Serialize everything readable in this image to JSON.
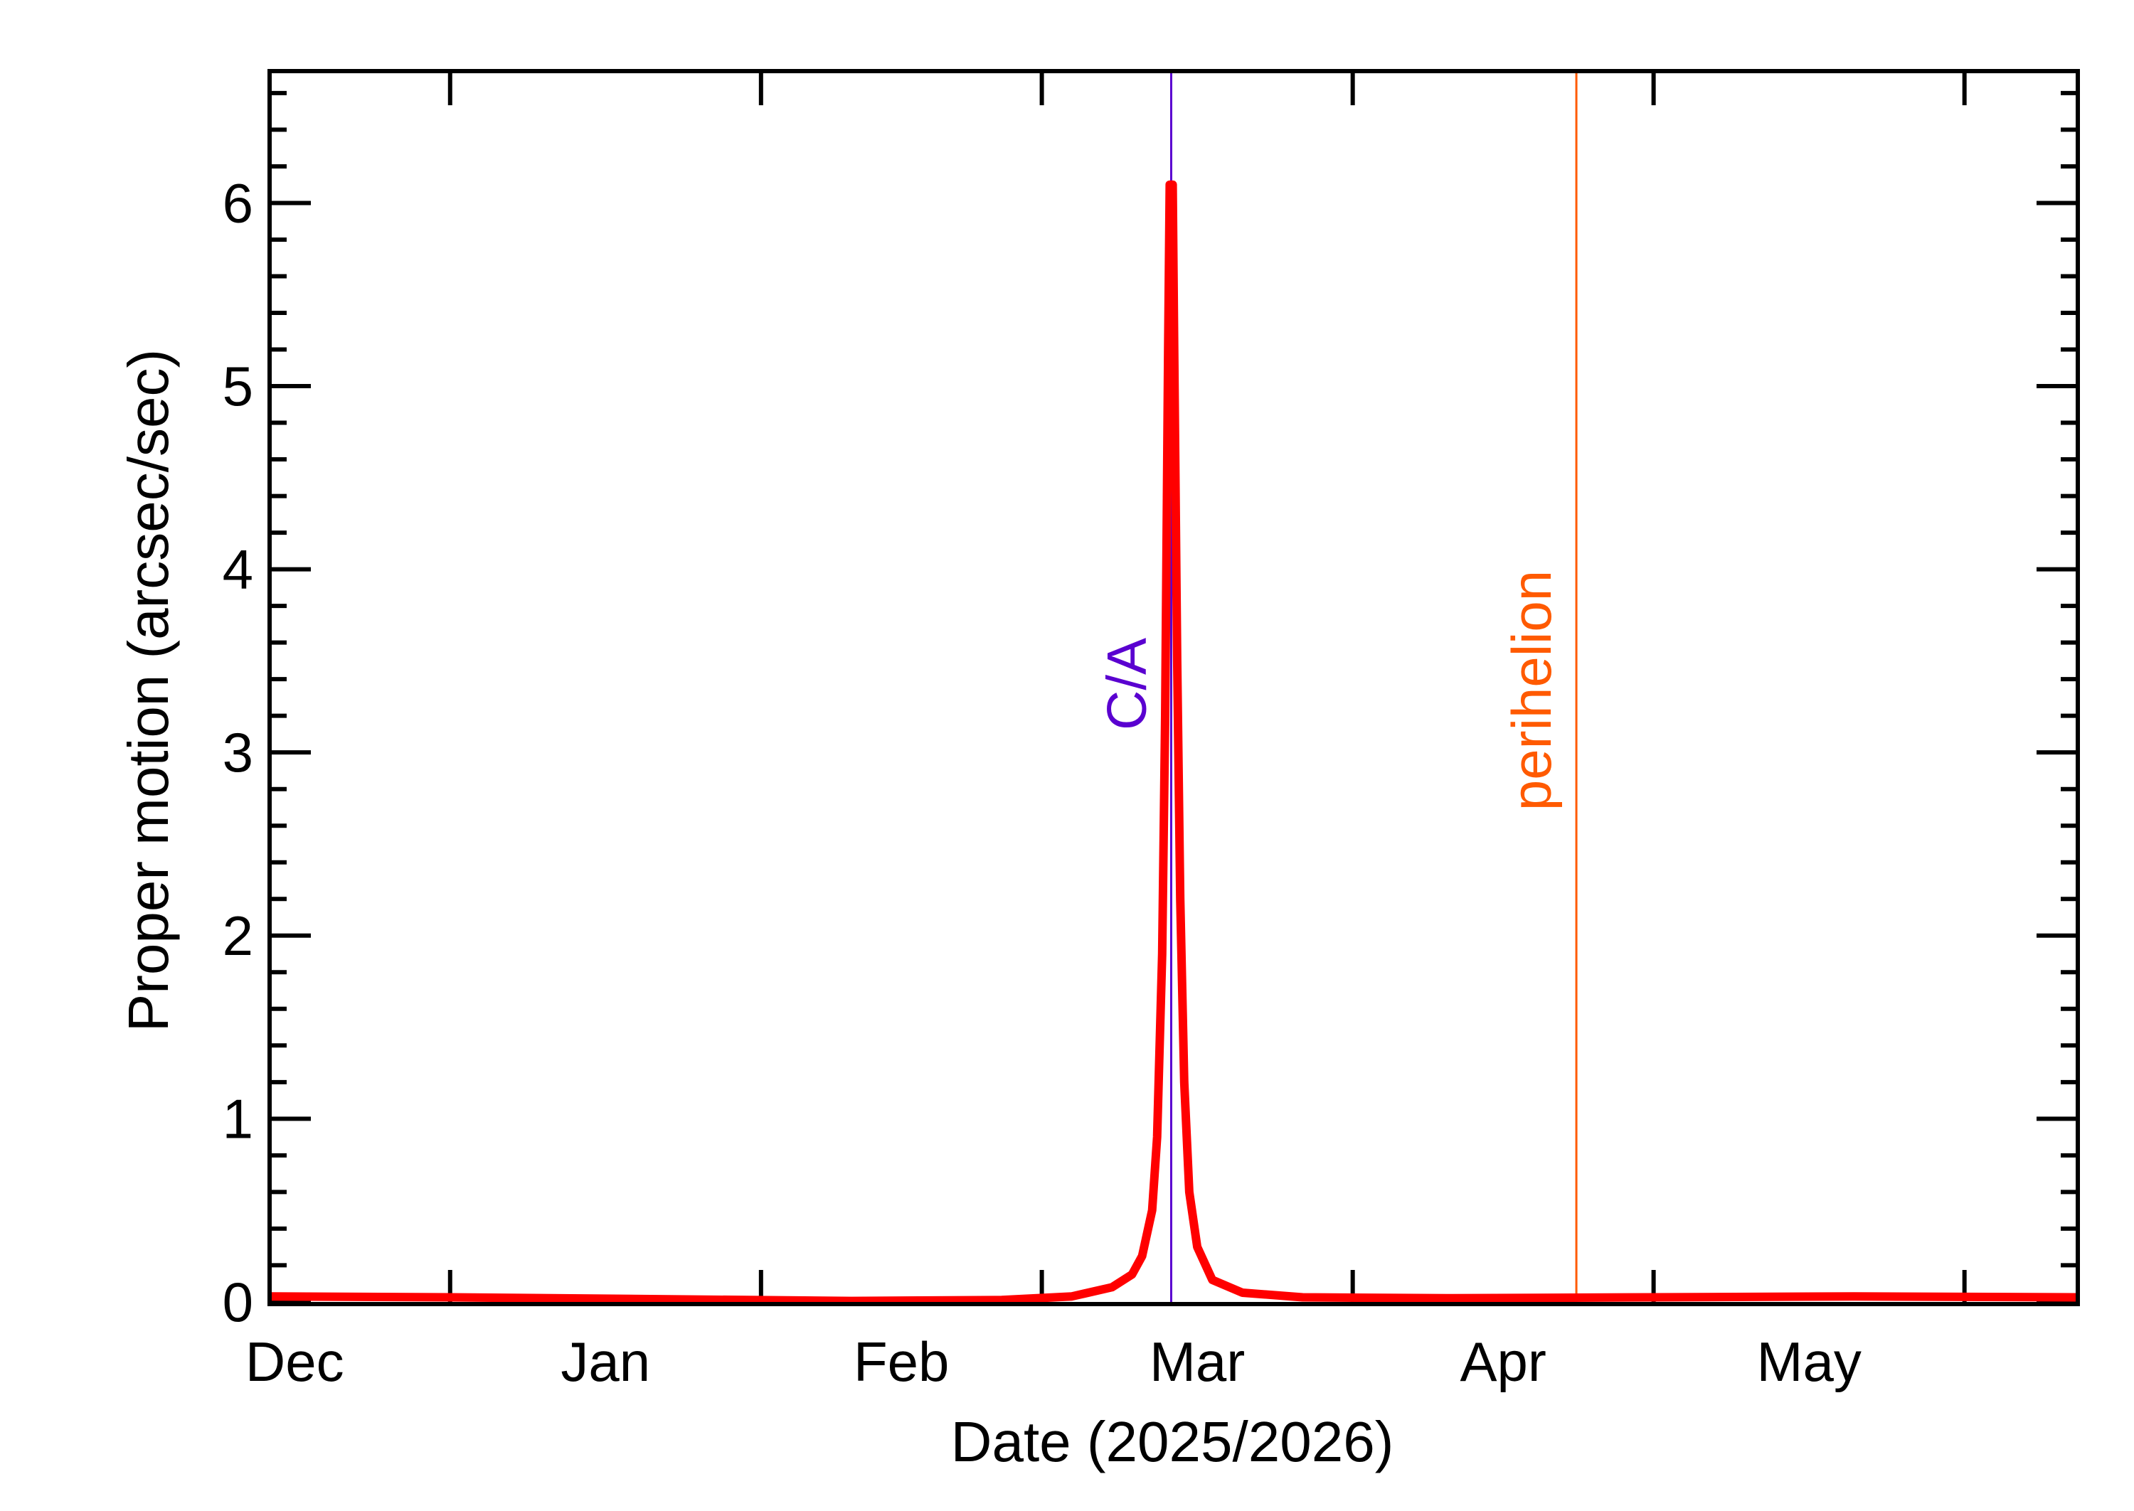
{
  "chart_data": {
    "type": "line",
    "title": "",
    "xlabel": "Date (2025/2026)",
    "ylabel": "Proper motion (arcsec/sec)",
    "x_units": "days since 2026-01-01",
    "xlim": [
      -18,
      162.3
    ],
    "ylim": [
      -0.012,
      6.72
    ],
    "grid": false,
    "x_ticks": [
      {
        "label": "Dec",
        "tick_day": null,
        "label_day": -15.5
      },
      {
        "label": "Jan",
        "tick_day": 0,
        "label_day": 15.5
      },
      {
        "label": "Feb",
        "tick_day": 31,
        "label_day": 45
      },
      {
        "label": "Mar",
        "tick_day": 59,
        "label_day": 74.5
      },
      {
        "label": "Apr",
        "tick_day": 90,
        "label_day": 105
      },
      {
        "label": "May",
        "tick_day": 120,
        "label_day": 135.5
      },
      {
        "label": "",
        "tick_day": 151,
        "label_day": null
      }
    ],
    "y_ticks": [
      {
        "value": 0,
        "label": "0"
      },
      {
        "value": 1,
        "label": "1"
      },
      {
        "value": 2,
        "label": "2"
      },
      {
        "value": 3,
        "label": "3"
      },
      {
        "value": 4,
        "label": "4"
      },
      {
        "value": 5,
        "label": "5"
      },
      {
        "value": 6,
        "label": "6"
      }
    ],
    "series": [
      {
        "name": "Proper motion",
        "color": "#ff0000",
        "points": [
          [
            -18,
            0.03
          ],
          [
            0,
            0.025
          ],
          [
            20,
            0.015
          ],
          [
            40,
            0.005
          ],
          [
            55,
            0.01
          ],
          [
            62,
            0.03
          ],
          [
            66,
            0.08
          ],
          [
            68,
            0.15
          ],
          [
            69,
            0.25
          ],
          [
            70,
            0.5
          ],
          [
            70.5,
            0.9
          ],
          [
            71,
            1.9
          ],
          [
            71.3,
            3.2
          ],
          [
            71.6,
            5.2
          ],
          [
            71.75,
            6.1
          ],
          [
            72.05,
            6.1
          ],
          [
            72.2,
            5.2
          ],
          [
            72.5,
            3.5
          ],
          [
            72.8,
            2.2
          ],
          [
            73.2,
            1.2
          ],
          [
            73.7,
            0.6
          ],
          [
            74.5,
            0.3
          ],
          [
            76,
            0.12
          ],
          [
            79,
            0.05
          ],
          [
            85,
            0.025
          ],
          [
            100,
            0.02
          ],
          [
            120,
            0.025
          ],
          [
            140,
            0.03
          ],
          [
            162.3,
            0.025
          ]
        ]
      }
    ],
    "annotations": [
      {
        "label": "C/A",
        "day": 71.9,
        "color": "#5a00d0"
      },
      {
        "label": "perihelion",
        "day": 112.3,
        "color": "#ff5a00"
      }
    ]
  }
}
